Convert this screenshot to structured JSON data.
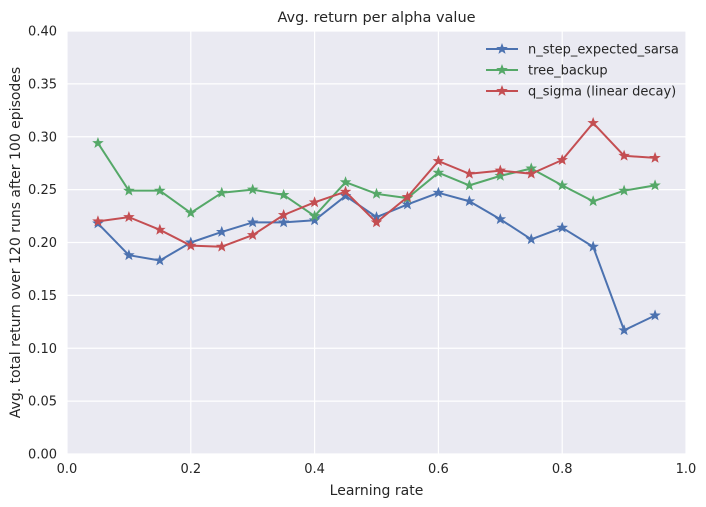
{
  "chart_data": {
    "type": "line",
    "title": "Avg. return per alpha value",
    "xlabel": "Learning rate",
    "ylabel": "Avg. total return over 120 runs after 100 episodes",
    "xlim": [
      0.0,
      1.0
    ],
    "ylim": [
      0.0,
      0.4
    ],
    "xticks": [
      "0.0",
      "0.2",
      "0.4",
      "0.6",
      "0.8",
      "1.0"
    ],
    "yticks": [
      "0.00",
      "0.05",
      "0.10",
      "0.15",
      "0.20",
      "0.25",
      "0.30",
      "0.35",
      "0.40"
    ],
    "grid": true,
    "legend_position": "top-right",
    "x": [
      0.05,
      0.1,
      0.15,
      0.2,
      0.25,
      0.3,
      0.35,
      0.4,
      0.45,
      0.5,
      0.55,
      0.6,
      0.65,
      0.7,
      0.75,
      0.8,
      0.85,
      0.9,
      0.95
    ],
    "series": [
      {
        "name": "n_step_expected_sarsa",
        "color": "#4c72b0",
        "values": [
          0.218,
          0.188,
          0.183,
          0.2,
          0.21,
          0.219,
          0.219,
          0.221,
          0.244,
          0.224,
          0.236,
          0.247,
          0.239,
          0.222,
          0.203,
          0.214,
          0.196,
          0.117,
          0.131
        ]
      },
      {
        "name": "tree_backup",
        "color": "#55a868",
        "values": [
          0.294,
          0.249,
          0.249,
          0.228,
          0.247,
          0.25,
          0.245,
          0.225,
          0.257,
          0.246,
          0.242,
          0.266,
          0.254,
          0.263,
          0.27,
          0.254,
          0.239,
          0.249,
          0.254
        ]
      },
      {
        "name": "q_sigma (linear decay)",
        "color": "#c44e52",
        "values": [
          0.22,
          0.224,
          0.212,
          0.197,
          0.196,
          0.207,
          0.226,
          0.238,
          0.248,
          0.219,
          0.243,
          0.277,
          0.265,
          0.268,
          0.265,
          0.278,
          0.313,
          0.282,
          0.28
        ]
      }
    ]
  }
}
